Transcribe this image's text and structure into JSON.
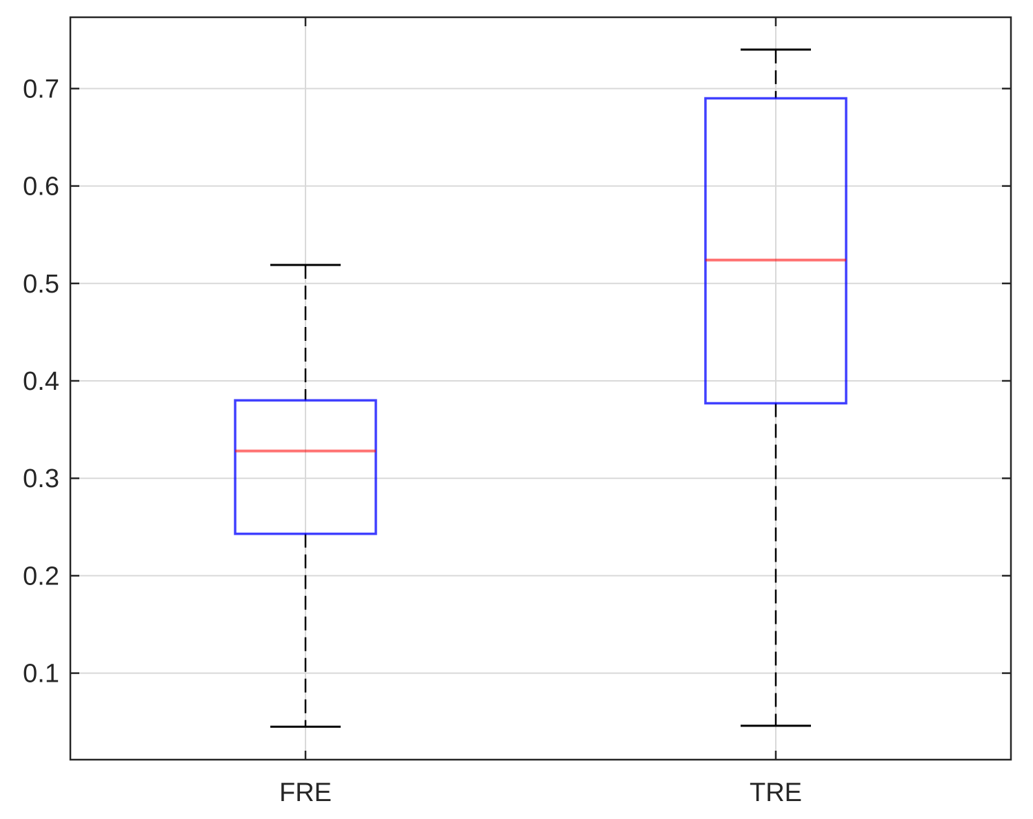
{
  "chart_data": {
    "type": "box",
    "title": "",
    "xlabel": "",
    "ylabel": "",
    "ylim": [
      0.0112,
      0.7732
    ],
    "yticks": [
      0.1,
      0.2,
      0.3,
      0.4,
      0.5,
      0.6,
      0.7
    ],
    "ytick_labels": [
      "0.1",
      "0.2",
      "0.3",
      "0.4",
      "0.5",
      "0.6",
      "0.7"
    ],
    "grid": true,
    "categories": [
      "FRE",
      "TRE"
    ],
    "boxes": [
      {
        "label": "FRE",
        "whisker_low": 0.045,
        "q1": 0.243,
        "median": 0.328,
        "q3": 0.38,
        "whisker_high": 0.519
      },
      {
        "label": "TRE",
        "whisker_low": 0.046,
        "q1": 0.377,
        "median": 0.524,
        "q3": 0.69,
        "whisker_high": 0.74
      }
    ],
    "colors": {
      "box": "#0000ff",
      "median": "#ff0000",
      "whisker": "#000000",
      "grid": "#d9d9d9",
      "axis": "#262626"
    }
  }
}
